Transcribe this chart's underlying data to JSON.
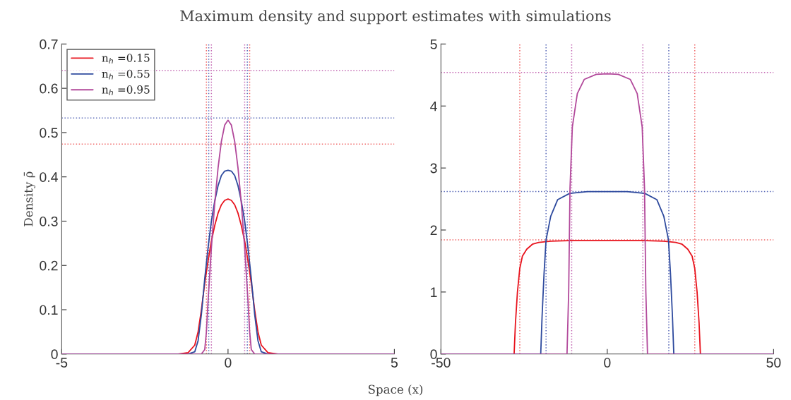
{
  "chart_data": [
    {
      "type": "line",
      "title": "Maximum density and support estimates with simulations",
      "xlabel": "Space (x)",
      "ylabel": "Density ρ̄",
      "xlim": [
        -5,
        5
      ],
      "xticks": [
        -5,
        0,
        5
      ],
      "ylim": [
        0,
        0.7
      ],
      "yticks": [
        0,
        0.1,
        0.2,
        0.3,
        0.4,
        0.5,
        0.6,
        0.7
      ],
      "legend": "top left",
      "grid": false,
      "series": [
        {
          "name": "n$_{h}$ =0.15",
          "color": "#e8141e",
          "x": [
            -5,
            -1.5,
            -1.2,
            -1.0,
            -0.9,
            -0.8,
            -0.7,
            -0.6,
            -0.5,
            -0.4,
            -0.3,
            -0.2,
            -0.1,
            0,
            0.1,
            0.2,
            0.3,
            0.4,
            0.5,
            0.6,
            0.7,
            0.8,
            0.9,
            1.0,
            1.2,
            1.5,
            5
          ],
          "values": [
            0,
            0,
            0.003,
            0.02,
            0.05,
            0.1,
            0.16,
            0.21,
            0.255,
            0.29,
            0.318,
            0.337,
            0.347,
            0.35,
            0.347,
            0.337,
            0.318,
            0.29,
            0.255,
            0.21,
            0.16,
            0.1,
            0.05,
            0.02,
            0.003,
            0,
            0
          ]
        },
        {
          "name": "n$_{h}$ =0.55",
          "color": "#2e4a9e",
          "x": [
            -5,
            -1.2,
            -1.0,
            -0.9,
            -0.8,
            -0.7,
            -0.6,
            -0.5,
            -0.4,
            -0.3,
            -0.2,
            -0.1,
            0,
            0.1,
            0.2,
            0.3,
            0.4,
            0.5,
            0.6,
            0.7,
            0.8,
            0.9,
            1.0,
            1.2,
            5
          ],
          "values": [
            0,
            0,
            0.005,
            0.03,
            0.09,
            0.17,
            0.24,
            0.3,
            0.345,
            0.38,
            0.403,
            0.413,
            0.415,
            0.413,
            0.403,
            0.38,
            0.345,
            0.3,
            0.24,
            0.17,
            0.09,
            0.03,
            0.005,
            0,
            0
          ]
        },
        {
          "name": "n$_{h}$ =0.95",
          "color": "#b2499b",
          "x": [
            -5,
            -0.8,
            -0.7,
            -0.65,
            -0.6,
            -0.5,
            -0.4,
            -0.3,
            -0.2,
            -0.1,
            0,
            0.1,
            0.2,
            0.3,
            0.4,
            0.5,
            0.6,
            0.65,
            0.7,
            0.8,
            5
          ],
          "values": [
            0,
            0,
            0.01,
            0.05,
            0.12,
            0.24,
            0.34,
            0.42,
            0.48,
            0.517,
            0.528,
            0.517,
            0.48,
            0.42,
            0.34,
            0.24,
            0.12,
            0.05,
            0.01,
            0,
            0
          ]
        }
      ],
      "ref_lines": [
        {
          "axis": "y",
          "value": 0.474,
          "color": "#f06a6a",
          "line_style": "dotted"
        },
        {
          "axis": "y",
          "value": 0.533,
          "color": "#5a6ab8",
          "line_style": "dotted"
        },
        {
          "axis": "y",
          "value": 0.64,
          "color": "#c46ab4",
          "line_style": "dotted"
        },
        {
          "axis": "x",
          "value": -0.65,
          "color": "#f06a6a",
          "line_style": "dotted"
        },
        {
          "axis": "x",
          "value": 0.65,
          "color": "#f06a6a",
          "line_style": "dotted"
        },
        {
          "axis": "x",
          "value": -0.58,
          "color": "#5a6ab8",
          "line_style": "dotted"
        },
        {
          "axis": "x",
          "value": 0.58,
          "color": "#5a6ab8",
          "line_style": "dotted"
        },
        {
          "axis": "x",
          "value": -0.5,
          "color": "#c46ab4",
          "line_style": "dotted"
        },
        {
          "axis": "x",
          "value": 0.5,
          "color": "#c46ab4",
          "line_style": "dotted"
        }
      ]
    },
    {
      "type": "line",
      "xlim": [
        -50,
        50
      ],
      "xticks": [
        -50,
        0,
        50
      ],
      "ylim": [
        0,
        5
      ],
      "yticks": [
        0,
        1,
        2,
        3,
        4,
        5
      ],
      "grid": false,
      "series": [
        {
          "color": "#e8141e",
          "x": [
            -50,
            -28.0,
            -27.6,
            -27.0,
            -26.3,
            -25.5,
            -24.2,
            -22.5,
            -20.6,
            -17,
            -10,
            0,
            10,
            17,
            20.6,
            22.5,
            24.2,
            25.5,
            26.3,
            27.0,
            27.6,
            28.0,
            50
          ],
          "values": [
            0,
            0,
            0.5,
            1.0,
            1.38,
            1.58,
            1.69,
            1.77,
            1.8,
            1.82,
            1.83,
            1.83,
            1.83,
            1.82,
            1.8,
            1.77,
            1.69,
            1.58,
            1.38,
            1.0,
            0.5,
            0,
            0
          ]
        },
        {
          "color": "#2e4a9e",
          "x": [
            -50,
            -20.0,
            -19.6,
            -19.0,
            -18.4,
            -17.0,
            -14.9,
            -11.3,
            -6,
            0,
            6,
            11.3,
            14.9,
            17.0,
            18.4,
            19.0,
            19.6,
            20.0,
            50
          ],
          "values": [
            0,
            0,
            0.6,
            1.3,
            1.84,
            2.22,
            2.49,
            2.59,
            2.62,
            2.62,
            2.62,
            2.59,
            2.49,
            2.22,
            1.84,
            1.3,
            0.6,
            0,
            0
          ]
        },
        {
          "color": "#b2499b",
          "x": [
            -50,
            -12.1,
            -11.6,
            -11.2,
            -10.5,
            -9.0,
            -6.9,
            -3.3,
            0,
            3.3,
            6.9,
            9.0,
            10.5,
            11.2,
            11.6,
            12.1,
            50
          ],
          "values": [
            0,
            0,
            1.0,
            2.67,
            3.66,
            4.2,
            4.43,
            4.51,
            4.52,
            4.51,
            4.43,
            4.2,
            3.66,
            2.67,
            1.0,
            0,
            0
          ]
        }
      ],
      "ref_lines": [
        {
          "axis": "y",
          "value": 1.84,
          "color": "#f06a6a",
          "line_style": "dotted"
        },
        {
          "axis": "y",
          "value": 2.62,
          "color": "#5a6ab8",
          "line_style": "dotted"
        },
        {
          "axis": "y",
          "value": 4.54,
          "color": "#c46ab4",
          "line_style": "dotted"
        },
        {
          "axis": "x",
          "value": -26.3,
          "color": "#f06a6a",
          "line_style": "dotted"
        },
        {
          "axis": "x",
          "value": 26.3,
          "color": "#f06a6a",
          "line_style": "dotted"
        },
        {
          "axis": "x",
          "value": -18.4,
          "color": "#5a6ab8",
          "line_style": "dotted"
        },
        {
          "axis": "x",
          "value": 18.5,
          "color": "#5a6ab8",
          "line_style": "dotted"
        },
        {
          "axis": "x",
          "value": -10.7,
          "color": "#c46ab4",
          "line_style": "dotted"
        },
        {
          "axis": "x",
          "value": 10.7,
          "color": "#c46ab4",
          "line_style": "dotted"
        }
      ]
    }
  ]
}
